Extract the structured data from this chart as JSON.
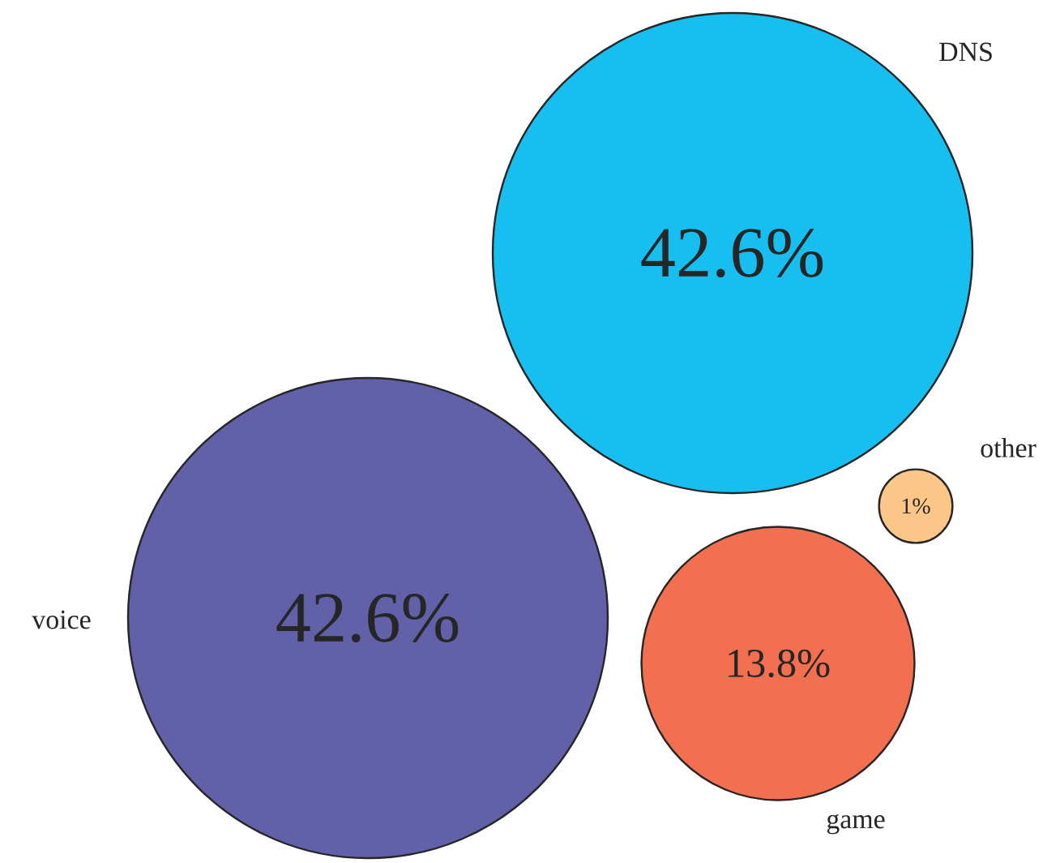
{
  "chart_data": {
    "type": "other",
    "categories": [
      "DNS",
      "other",
      "voice",
      "game"
    ],
    "values": [
      42.6,
      1,
      42.6,
      13.8
    ],
    "value_labels": [
      "42.6%",
      "1%",
      "42.6%",
      "13.8%"
    ],
    "colors": [
      "#17bff0",
      "#fdc689",
      "#6260a8",
      "#f26f50"
    ]
  }
}
